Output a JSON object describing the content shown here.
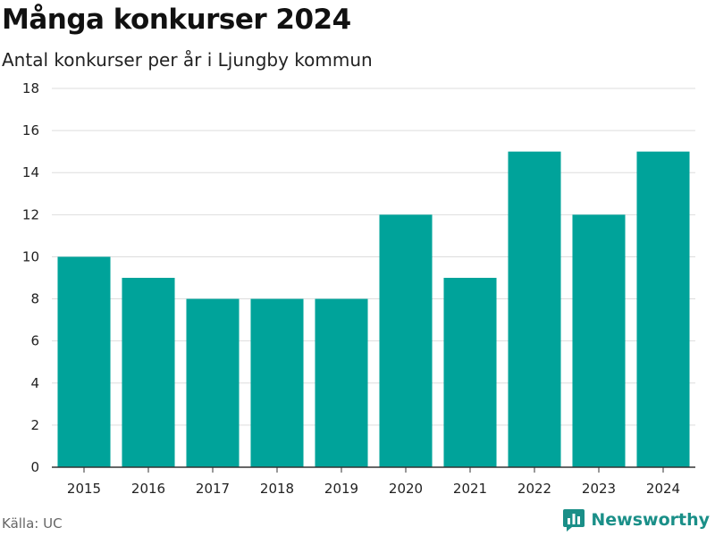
{
  "header": {
    "title": "Många konkurser 2024",
    "subtitle": "Antal konkurser per år i Ljungby kommun"
  },
  "footer": {
    "source": "Källa: UC",
    "brand": "Newsworthy",
    "brand_icon": "bar-chart-logo-icon",
    "brand_color": "#1a8f88"
  },
  "chart_data": {
    "type": "bar",
    "title": "Många konkurser 2024",
    "subtitle": "Antal konkurser per år i Ljungby kommun",
    "categories": [
      "2015",
      "2016",
      "2017",
      "2018",
      "2019",
      "2020",
      "2021",
      "2022",
      "2023",
      "2024"
    ],
    "values": [
      10,
      9,
      8,
      8,
      8,
      12,
      9,
      15,
      12,
      15
    ],
    "ylim": [
      0,
      18
    ],
    "yticks": [
      0,
      2,
      4,
      6,
      8,
      10,
      12,
      14,
      16,
      18
    ],
    "xlabel": "",
    "ylabel": "",
    "grid": true,
    "bar_color": "#00a39a"
  }
}
